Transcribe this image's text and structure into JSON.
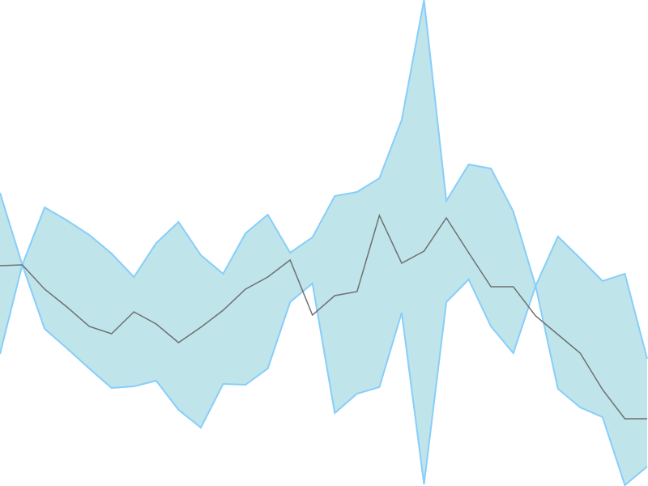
{
  "chart_data": {
    "type": "area",
    "title": "",
    "xlabel": "",
    "ylabel": "",
    "grid": false,
    "axes_visible": false,
    "xlim": [
      0,
      29
    ],
    "ylim": [
      0,
      600
    ],
    "x": [
      0,
      1,
      2,
      3,
      4,
      5,
      6,
      7,
      8,
      9,
      10,
      11,
      12,
      13,
      14,
      15,
      16,
      17,
      18,
      19,
      20,
      21,
      22,
      23,
      24,
      25,
      26,
      27,
      28,
      29
    ],
    "band": {
      "upper": [
        362,
        273,
        344,
        328,
        310,
        287,
        258,
        300,
        326,
        285,
        262,
        312,
        335,
        288,
        307,
        358,
        363,
        380,
        452,
        600,
        352,
        397,
        392,
        339,
        247,
        308,
        281,
        253,
        262,
        157
      ],
      "lower": [
        163,
        273,
        194,
        170,
        145,
        121,
        123,
        130,
        94,
        72,
        126,
        125,
        145,
        227,
        250,
        90,
        114,
        122,
        214,
        2,
        227,
        255,
        197,
        164,
        247,
        120,
        97,
        85,
        1,
        24
      ],
      "fill": "#bfe4ea",
      "stroke": "#87cefa"
    },
    "series": [
      {
        "values": [
          272,
          273,
          243,
          221,
          197,
          188,
          215,
          200,
          177,
          196,
          217,
          243,
          258,
          279,
          211,
          235,
          240,
          334,
          275,
          290,
          331,
          288,
          246,
          246,
          210,
          187,
          164,
          119,
          83,
          83
        ],
        "color": "#707070"
      }
    ]
  }
}
